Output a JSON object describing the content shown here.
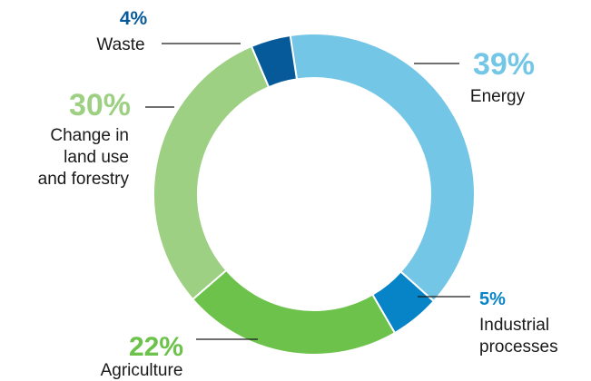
{
  "chart_data": {
    "type": "pie",
    "slices": [
      {
        "label": "Energy",
        "label_lines": [
          "Energy"
        ],
        "value": 39,
        "value_label": "39%",
        "color": "#74C6E6"
      },
      {
        "label": "Industrial processes",
        "label_lines": [
          "Industrial",
          "processes"
        ],
        "value": 5,
        "value_label": "5%",
        "color": "#0784C7"
      },
      {
        "label": "Agriculture",
        "label_lines": [
          "Agriculture"
        ],
        "value": 22,
        "value_label": "22%",
        "color": "#6CC24A"
      },
      {
        "label": "Change in land use and forestry",
        "label_lines": [
          "Change in",
          "land use",
          "and forestry"
        ],
        "value": 30,
        "value_label": "30%",
        "color": "#9DD082"
      },
      {
        "label": "Waste",
        "label_lines": [
          "Waste"
        ],
        "value": 4,
        "value_label": "4%",
        "color": "#075A9A"
      }
    ],
    "legend": "none",
    "labels_placement": "callouts"
  },
  "colors": {
    "leader_line": "#1a1a1a",
    "label_text": "#1a1a1a"
  }
}
